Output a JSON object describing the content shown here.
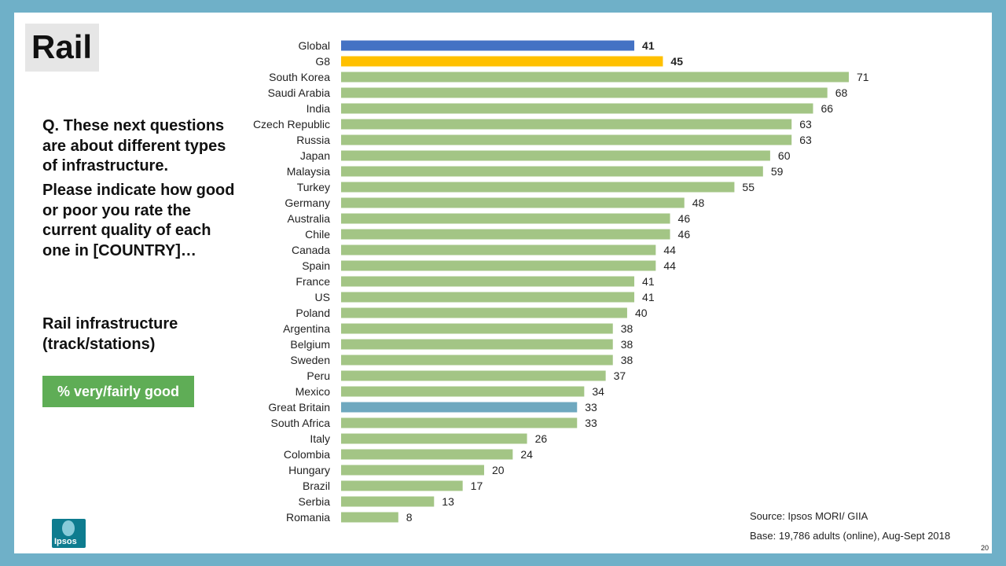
{
  "slide": {
    "title": "Rail",
    "question_1": "Q. These next questions are about different types of infrastructure.",
    "question_2": "Please indicate how good or poor you rate the current quality of each one in [COUNTRY]…",
    "subject": "Rail infrastructure (track/stations)",
    "measure_badge": "% very/fairly good",
    "source": "Source: Ipsos MORI/ GIIA",
    "base": "Base: 19,786 adults (online), Aug-Sept 2018",
    "logo_text": "Ipsos",
    "page_number": "20"
  },
  "colors": {
    "background_frame": "#6fb0c8",
    "badge": "#5fad56",
    "global": "#4472c4",
    "g8": "#ffc000",
    "country": "#a3c585",
    "great_britain": "#6fa8bf"
  },
  "chart_data": {
    "type": "bar",
    "orientation": "horizontal",
    "categories": [
      "Global",
      "G8",
      "South Korea",
      "Saudi Arabia",
      "India",
      "Czech Republic",
      "Russia",
      "Japan",
      "Malaysia",
      "Turkey",
      "Germany",
      "Australia",
      "Chile",
      "Canada",
      "Spain",
      "France",
      "US",
      "Poland",
      "Argentina",
      "Belgium",
      "Sweden",
      "Peru",
      "Mexico",
      "Great Britain",
      "South Africa",
      "Italy",
      "Colombia",
      "Hungary",
      "Brazil",
      "Serbia",
      "Romania"
    ],
    "values": [
      41,
      45,
      71,
      68,
      66,
      63,
      63,
      60,
      59,
      55,
      48,
      46,
      46,
      44,
      44,
      41,
      41,
      40,
      38,
      38,
      38,
      37,
      34,
      33,
      33,
      26,
      24,
      20,
      17,
      13,
      8
    ],
    "highlight": {
      "Global": "global",
      "G8": "g8",
      "Great Britain": "great_britain"
    },
    "bold_values": [
      "Global",
      "G8"
    ],
    "xlim": [
      0,
      71
    ],
    "grid": false,
    "title": "",
    "xlabel": "",
    "ylabel": ""
  }
}
